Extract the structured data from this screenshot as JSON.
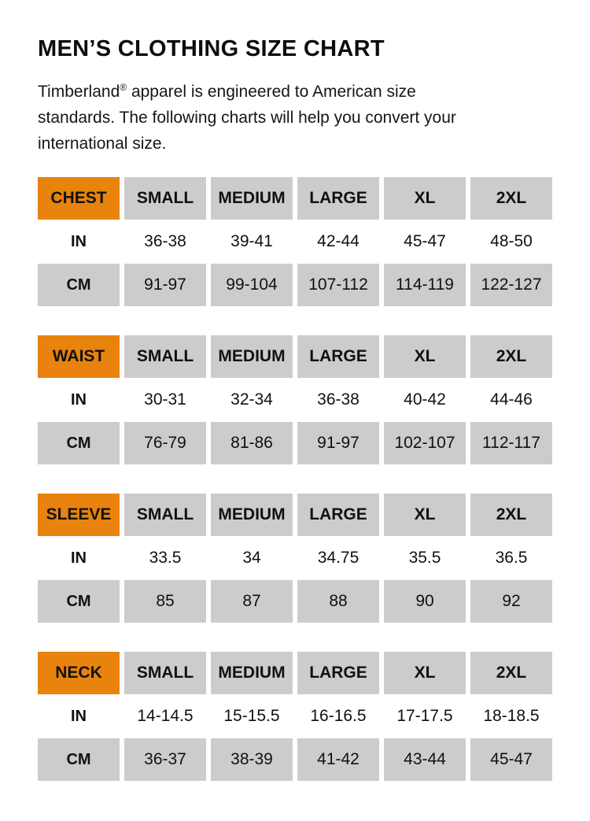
{
  "page": {
    "title": "MEN’S CLOTHING SIZE CHART",
    "intro_lines": [
      "Timberland® apparel is engineered to American size",
      "standards. The following charts will help you convert your",
      "international size."
    ]
  },
  "colors": {
    "accent_orange": "#E8830D",
    "cell_gray": "#CCCCCC",
    "text_black": "#111111"
  },
  "size_headers": [
    "SMALL",
    "MEDIUM",
    "LARGE",
    "XL",
    "2XL"
  ],
  "unit_labels": {
    "in": "IN",
    "cm": "CM"
  },
  "tables": [
    {
      "label": "CHEST",
      "in": [
        "36-38",
        "39-41",
        "42-44",
        "45-47",
        "48-50"
      ],
      "cm": [
        "91-97",
        "99-104",
        "107-112",
        "114-119",
        "122-127"
      ]
    },
    {
      "label": "WAIST",
      "in": [
        "30-31",
        "32-34",
        "36-38",
        "40-42",
        "44-46"
      ],
      "cm": [
        "76-79",
        "81-86",
        "91-97",
        "102-107",
        "112-117"
      ]
    },
    {
      "label": "SLEEVE",
      "in": [
        "33.5",
        "34",
        "34.75",
        "35.5",
        "36.5"
      ],
      "cm": [
        "85",
        "87",
        "88",
        "90",
        "92"
      ]
    },
    {
      "label": "NECK",
      "in": [
        "14-14.5",
        "15-15.5",
        "16-16.5",
        "17-17.5",
        "18-18.5"
      ],
      "cm": [
        "36-37",
        "38-39",
        "41-42",
        "43-44",
        "45-47"
      ]
    }
  ]
}
